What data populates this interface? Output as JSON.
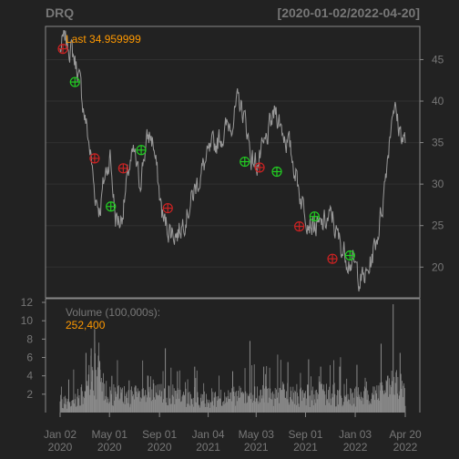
{
  "chart_data": {
    "type": "line",
    "symbol": "DRQ",
    "date_range": "[2020-01-02/2022-04-20]",
    "last_label": "Last 34.959999",
    "volume_label": "Volume (100,000s):",
    "volume_value": "252,400",
    "price_axis": {
      "ticks": [
        20,
        25,
        30,
        35,
        40,
        45
      ],
      "ylim": [
        16.3,
        49.0
      ]
    },
    "volume_axis": {
      "ticks": [
        2,
        4,
        6,
        8,
        10,
        12
      ],
      "ylim": [
        0,
        12.4
      ]
    },
    "x_ticks": [
      {
        "label": "Jan 02",
        "year": "2020",
        "t": 0
      },
      {
        "label": "May 01",
        "year": "2020",
        "t": 0.143
      },
      {
        "label": "Sep 01",
        "year": "2020",
        "t": 0.288
      },
      {
        "label": "Jan 04",
        "year": "2021",
        "t": 0.429
      },
      {
        "label": "May 03",
        "year": "2021",
        "t": 0.568
      },
      {
        "label": "Sep 01",
        "year": "2021",
        "t": 0.711
      },
      {
        "label": "Jan 03",
        "year": "2022",
        "t": 0.855
      },
      {
        "label": "Apr 20",
        "year": "2022",
        "t": 1.0
      }
    ],
    "price_series": {
      "name": "Close",
      "t": [
        0,
        0.012,
        0.03,
        0.05,
        0.065,
        0.08,
        0.09,
        0.1,
        0.115,
        0.13,
        0.145,
        0.16,
        0.175,
        0.19,
        0.2,
        0.215,
        0.23,
        0.245,
        0.26,
        0.27,
        0.29,
        0.3,
        0.32,
        0.34,
        0.36,
        0.38,
        0.4,
        0.42,
        0.44,
        0.46,
        0.48,
        0.5,
        0.52,
        0.54,
        0.555,
        0.57,
        0.59,
        0.61,
        0.625,
        0.64,
        0.66,
        0.68,
        0.7,
        0.72,
        0.735,
        0.75,
        0.77,
        0.79,
        0.8,
        0.82,
        0.84,
        0.86,
        0.875,
        0.89,
        0.905,
        0.92,
        0.935,
        0.95,
        0.965,
        0.98,
        1.0
      ],
      "values": [
        46.0,
        47.5,
        46.5,
        44.0,
        40.0,
        36.0,
        33.0,
        29.0,
        27.0,
        31.0,
        33.5,
        26.0,
        25.5,
        29.0,
        32.0,
        33.5,
        30.0,
        34.0,
        36.0,
        35.0,
        28.0,
        25.5,
        24.5,
        24.0,
        26.0,
        28.0,
        30.5,
        32.5,
        34.0,
        35.5,
        36.5,
        38.0,
        40.0,
        37.0,
        33.0,
        32.5,
        34.0,
        37.0,
        39.0,
        37.0,
        35.0,
        32.0,
        28.0,
        26.0,
        25.0,
        24.5,
        25.5,
        26.0,
        24.0,
        22.0,
        21.0,
        19.5,
        18.5,
        19.0,
        21.5,
        24.0,
        28.0,
        34.0,
        40.0,
        37.0,
        35.0
      ]
    },
    "markers": [
      {
        "t": 0.008,
        "value": 46.3,
        "color": "#cc2222"
      },
      {
        "t": 0.043,
        "value": 42.3,
        "color": "#22cc22"
      },
      {
        "t": 0.1,
        "value": 33.1,
        "color": "#cc2222"
      },
      {
        "t": 0.147,
        "value": 27.3,
        "color": "#22cc22"
      },
      {
        "t": 0.183,
        "value": 31.9,
        "color": "#cc2222"
      },
      {
        "t": 0.235,
        "value": 34.1,
        "color": "#22cc22"
      },
      {
        "t": 0.312,
        "value": 27.1,
        "color": "#cc2222"
      },
      {
        "t": 0.535,
        "value": 32.7,
        "color": "#22cc22"
      },
      {
        "t": 0.578,
        "value": 32.0,
        "color": "#cc2222"
      },
      {
        "t": 0.628,
        "value": 31.5,
        "color": "#22cc22"
      },
      {
        "t": 0.693,
        "value": 24.9,
        "color": "#cc2222"
      },
      {
        "t": 0.737,
        "value": 26.1,
        "color": "#22cc22"
      },
      {
        "t": 0.789,
        "value": 21.0,
        "color": "#cc2222"
      },
      {
        "t": 0.84,
        "value": 21.4,
        "color": "#22cc22"
      }
    ],
    "volume_series": {
      "name": "Volume",
      "t": [
        0,
        0.03,
        0.06,
        0.09,
        0.1,
        0.12,
        0.15,
        0.2,
        0.25,
        0.3,
        0.35,
        0.4,
        0.45,
        0.5,
        0.55,
        0.6,
        0.65,
        0.7,
        0.75,
        0.8,
        0.85,
        0.9,
        0.95,
        0.97,
        1.0
      ],
      "values": [
        1.5,
        1.8,
        2.5,
        5.0,
        6.5,
        3.5,
        2.5,
        2.2,
        2.3,
        2.6,
        2.0,
        1.8,
        2.0,
        2.1,
        2.0,
        2.4,
        2.6,
        2.2,
        2.5,
        2.4,
        2.2,
        2.6,
        3.0,
        4.0,
        2.5
      ],
      "spikes": [
        {
          "t": 0.025,
          "value": 3.6
        },
        {
          "t": 0.075,
          "value": 6.5
        },
        {
          "t": 0.09,
          "value": 7.0
        },
        {
          "t": 0.1,
          "value": 9.1
        },
        {
          "t": 0.115,
          "value": 5.5
        },
        {
          "t": 0.15,
          "value": 4.0
        },
        {
          "t": 0.2,
          "value": 3.5
        },
        {
          "t": 0.255,
          "value": 4.0
        },
        {
          "t": 0.305,
          "value": 7.0
        },
        {
          "t": 0.34,
          "value": 4.5
        },
        {
          "t": 0.39,
          "value": 5.0
        },
        {
          "t": 0.5,
          "value": 4.5
        },
        {
          "t": 0.55,
          "value": 7.8
        },
        {
          "t": 0.59,
          "value": 5.0
        },
        {
          "t": 0.66,
          "value": 5.5
        },
        {
          "t": 0.72,
          "value": 5.8
        },
        {
          "t": 0.755,
          "value": 5.0
        },
        {
          "t": 0.81,
          "value": 5.0
        },
        {
          "t": 0.86,
          "value": 5.2
        },
        {
          "t": 0.93,
          "value": 7.5
        },
        {
          "t": 0.965,
          "value": 11.8
        },
        {
          "t": 0.985,
          "value": 6.5
        }
      ]
    },
    "colors": {
      "background": "#222222",
      "frame": "#888888",
      "grid": "#303030",
      "series": "#999999",
      "volume": "#8a8a8a",
      "axis_text": "#777777",
      "highlight": "#ff9900"
    }
  }
}
